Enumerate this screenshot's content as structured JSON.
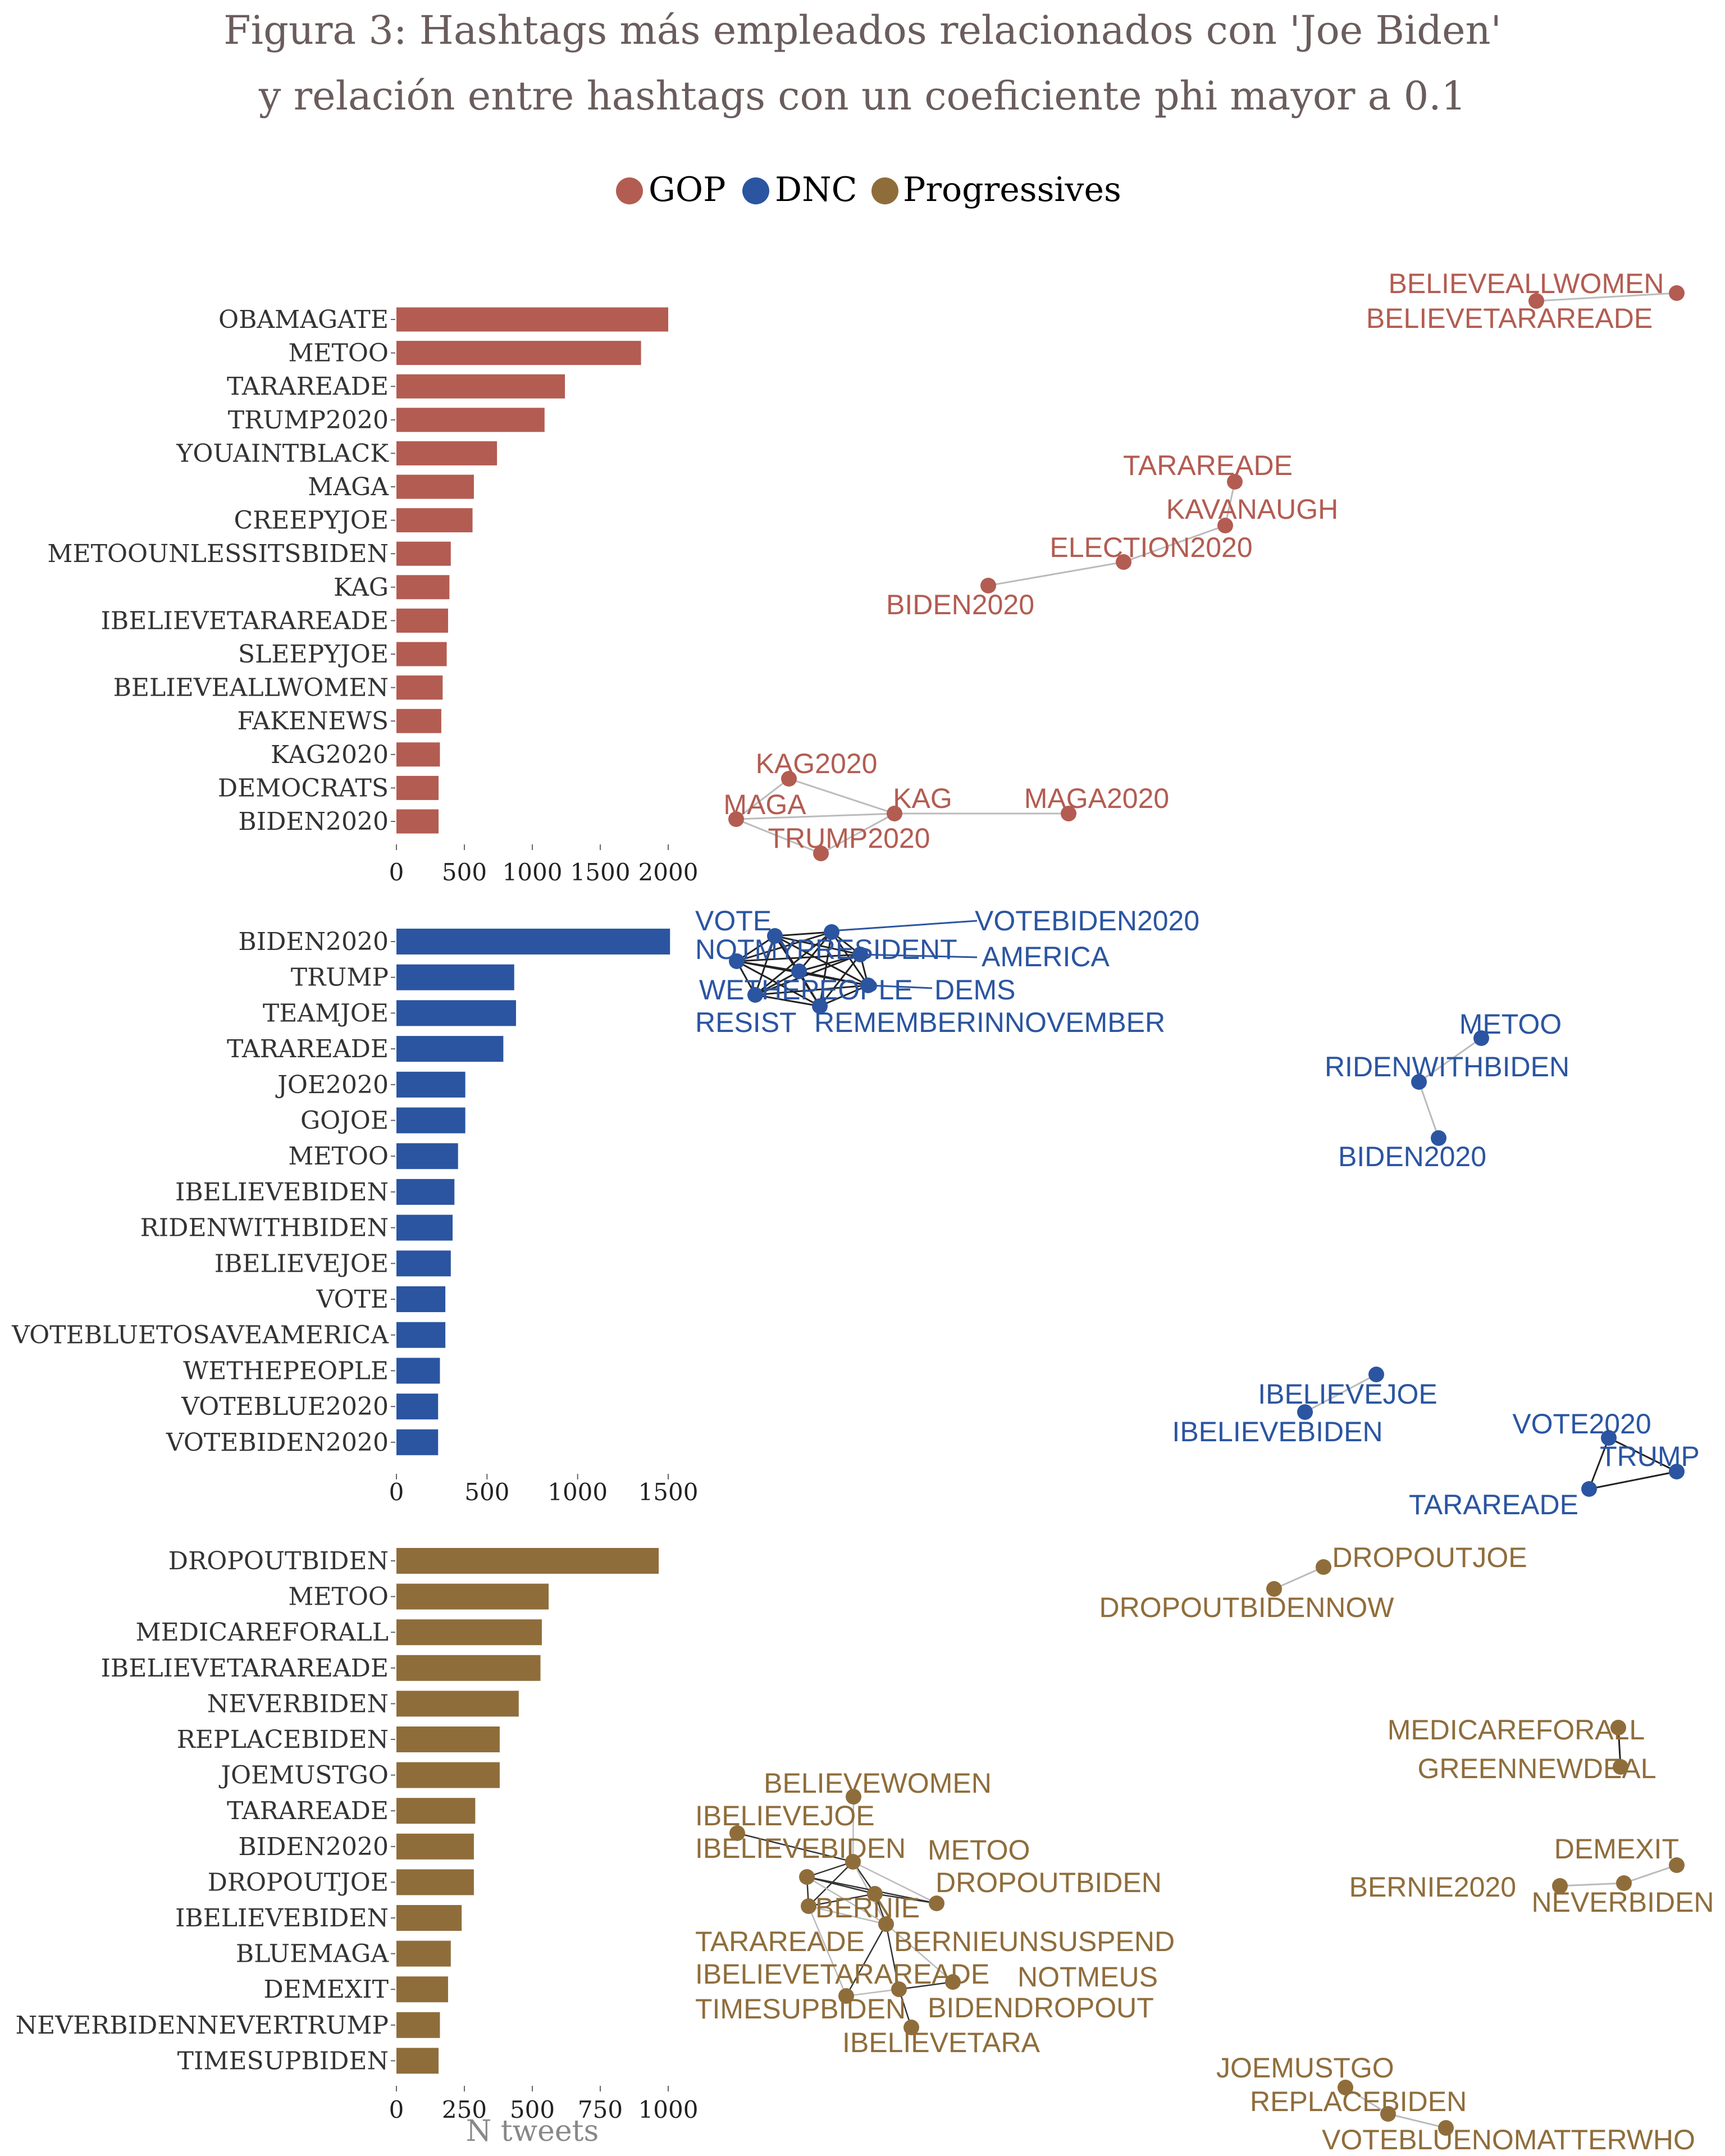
{
  "title": {
    "line1": "Figura 3: Hashtags más empleados relacionados con 'Joe Biden'",
    "line2": "y relación entre hashtags con un coeficiente phi mayor a 0.1"
  },
  "legend": [
    {
      "label": "GOP",
      "color": "#b35c52"
    },
    {
      "label": "DNC",
      "color": "#2b55a1"
    },
    {
      "label": "Progressives",
      "color": "#8f6d3b"
    }
  ],
  "x_axis_label": "N tweets",
  "colors": {
    "title": "#6b5d5d",
    "axis_text": "#333333",
    "tick_text": "#222222",
    "xlabel": "#888888",
    "edge": "#bbbbbb",
    "edge_dark": "#222222"
  },
  "chart_data": [
    {
      "type": "bar",
      "orientation": "horizontal",
      "group": "GOP",
      "color": "#b35c52",
      "categories": [
        "OBAMAGATE",
        "METOO",
        "TARAREADE",
        "TRUMP2020",
        "YOUAINTBLACK",
        "MAGA",
        "CREEPYJOE",
        "METOOUNLESSITSBIDEN",
        "KAG",
        "IBELIEVETARAREADE",
        "SLEEPYJOE",
        "BELIEVEALLWOMEN",
        "FAKENEWS",
        "KAG2020",
        "DEMOCRATS",
        "BIDEN2020"
      ],
      "values": [
        2000,
        1800,
        1240,
        1090,
        740,
        570,
        560,
        400,
        390,
        380,
        370,
        340,
        330,
        320,
        310,
        310
      ],
      "xlim": [
        0,
        2000
      ],
      "xticks": [
        0,
        500,
        1000,
        1500,
        2000
      ],
      "xtick_labels": [
        "0",
        "500",
        "1000",
        "1500",
        "2000"
      ]
    },
    {
      "type": "bar",
      "orientation": "horizontal",
      "group": "DNC",
      "color": "#2b55a1",
      "categories": [
        "BIDEN2020",
        "TRUMP",
        "TEAMJOE",
        "TARAREADE",
        "JOE2020",
        "GOJOE",
        "METOO",
        "IBELIEVEBIDEN",
        "RIDENWITHBIDEN",
        "IBELIEVEJOE",
        "VOTE",
        "VOTEBLUETOSAVEAMERICA",
        "WETHEPEOPLE",
        "VOTEBLUE2020",
        "VOTEBIDEN2020"
      ],
      "values": [
        1510,
        650,
        660,
        590,
        380,
        380,
        340,
        320,
        310,
        300,
        270,
        270,
        240,
        230,
        230
      ],
      "xlim": [
        0,
        1500
      ],
      "xticks": [
        0,
        500,
        1000,
        1500
      ],
      "xtick_labels": [
        "0",
        "500",
        "1000",
        "1500"
      ]
    },
    {
      "type": "bar",
      "orientation": "horizontal",
      "group": "Progressives",
      "color": "#8f6d3b",
      "categories": [
        "DROPOUTBIDEN",
        "METOO",
        "MEDICAREFORALL",
        "IBELIEVETARAREADE",
        "NEVERBIDEN",
        "REPLACEBIDEN",
        "JOEMUSTGO",
        "TARAREADE",
        "BIDEN2020",
        "DROPOUTJOE",
        "IBELIEVEBIDEN",
        "BLUEMAGA",
        "DEMEXIT",
        "NEVERBIDENNEVERTRUMP",
        "TIMESUPBIDEN"
      ],
      "values": [
        965,
        560,
        535,
        530,
        450,
        380,
        380,
        290,
        285,
        285,
        240,
        200,
        190,
        160,
        155
      ],
      "xlim": [
        0,
        1000
      ],
      "xticks": [
        0,
        250,
        500,
        750,
        1000
      ],
      "xtick_labels": [
        "0",
        "250",
        "500",
        "750",
        "1000"
      ]
    }
  ],
  "networks": {
    "GOP": {
      "labels": [
        "BELIEVEALLWOMEN",
        "BELIEVETARAREADE",
        "TARAREADE",
        "KAVANAUGH",
        "ELECTION2020",
        "BIDEN2020",
        "KAG2020",
        "MAGA",
        "KAG",
        "MAGA2020",
        "TRUMP2020"
      ]
    },
    "DNC": {
      "labels": [
        "VOTE",
        "VOTEBIDEN2020",
        "NOTMYPRESIDENT",
        "AMERICA",
        "WETHEPEOPLE",
        "DEMS",
        "RESIST",
        "REMEMBERINNOVEMBER",
        "METOO",
        "RIDENWITHBIDEN",
        "BIDEN2020",
        "IBELIEVEJOE",
        "IBELIEVEBIDEN",
        "VOTE2020",
        "TRUMP",
        "TARAREADE"
      ]
    },
    "Progressives": {
      "labels": [
        "DROPOUTJOE",
        "DROPOUTBIDENNOW",
        "MEDICAREFORALL",
        "GREENNEWDEAL",
        "BELIEVEWOMEN",
        "IBELIEVEJOE",
        "IBELIEVEBIDEN",
        "METOO",
        "DROPOUTBIDEN",
        "BERNIE",
        "TARAREADE",
        "BERNIEUNSUSPEND",
        "IBELIEVETARAREADE",
        "NOTMEUS",
        "TIMESUPBIDEN",
        "BIDENDROPOUT",
        "IBELIEVETARA",
        "DEMEXIT",
        "BERNIE2020",
        "NEVERBIDEN",
        "JOEMUSTGO",
        "REPLACEBIDEN",
        "VOTEBLUENOMATTERWHO"
      ]
    }
  }
}
